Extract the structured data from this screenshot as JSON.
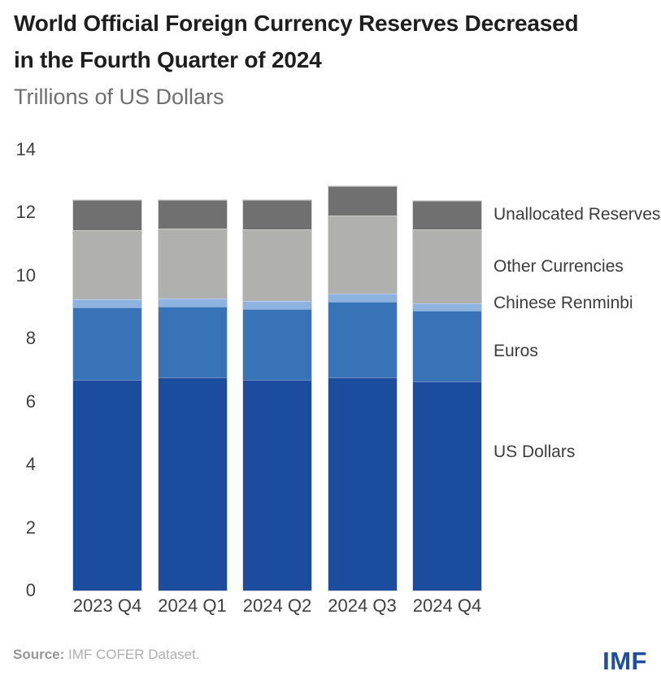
{
  "header": {
    "title_line1": "World Official Foreign Currency Reserves Decreased",
    "title_line2": "in the Fourth Quarter of 2024",
    "subtitle": "Trillions of US Dollars"
  },
  "chart_data": {
    "type": "bar",
    "stacked": true,
    "title": "World Official Foreign Currency Reserves Decreased in the Fourth Quarter of 2024",
    "subtitle": "Trillions of US Dollars",
    "categories": [
      "2023 Q4",
      "2024 Q1",
      "2024 Q2",
      "2024 Q3",
      "2024 Q4"
    ],
    "series": [
      {
        "name": "US Dollars",
        "color": "#1c4c9e",
        "values": [
          6.69,
          6.77,
          6.68,
          6.77,
          6.63
        ]
      },
      {
        "name": "Euros",
        "color": "#3873b7",
        "values": [
          2.29,
          2.24,
          2.26,
          2.39,
          2.24
        ]
      },
      {
        "name": "Chinese Renminbi",
        "color": "#8fb3e0",
        "values": [
          0.26,
          0.25,
          0.25,
          0.27,
          0.25
        ]
      },
      {
        "name": "Other Currencies",
        "color": "#b0b1af",
        "values": [
          2.2,
          2.23,
          2.27,
          2.47,
          2.33
        ]
      },
      {
        "name": "Unallocated Reserves",
        "color": "#707070",
        "values": [
          0.94,
          0.91,
          0.92,
          0.92,
          0.91
        ]
      }
    ],
    "totals": [
      12.38,
      12.4,
      12.38,
      12.82,
      12.36
    ],
    "yticks": [
      0,
      2,
      4,
      6,
      8,
      10,
      12,
      14
    ],
    "ylim": [
      0,
      14
    ],
    "grid": false,
    "legend_position": "right-of-last-bar"
  },
  "footer": {
    "source_label": "Source:",
    "source_text": "IMF COFER Dataset.",
    "logo_text": "IMF"
  },
  "colors": {
    "title": "#1e1e1e",
    "subtitle": "#6f6f6f",
    "axis_text": "#3f3f3f",
    "legend_text": "#3c3c3c",
    "logo_blue": "#1d4fa1",
    "background": "#ffffff"
  }
}
